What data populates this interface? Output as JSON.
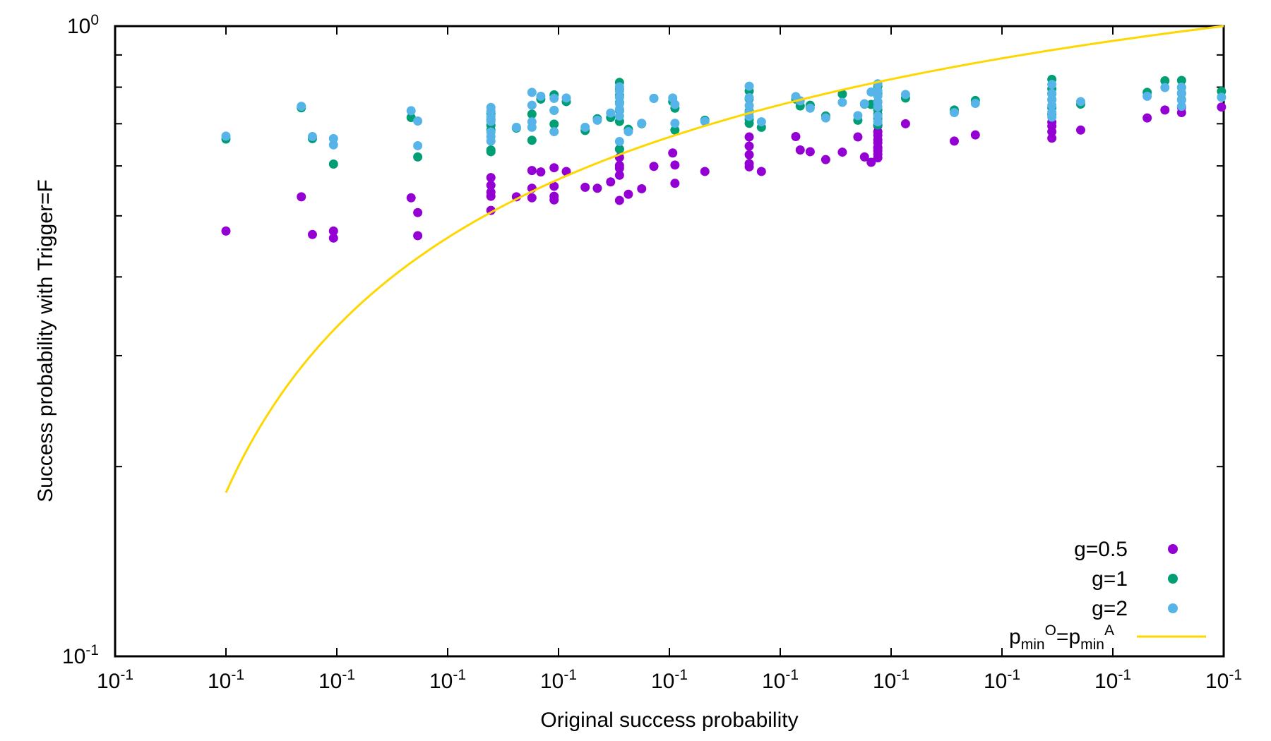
{
  "chart_data": {
    "type": "scatter",
    "title": "",
    "xlabel": "Original success probability",
    "ylabel": "Success probability with Trigger=F",
    "x_scale": "linear",
    "y_scale": "log",
    "xlim": [
      0.0,
      1.0
    ],
    "ylim": [
      0.1,
      1.0
    ],
    "x_tick_labels": [
      {
        "base": "10",
        "exp": "-1"
      },
      {
        "base": "10",
        "exp": "-1"
      },
      {
        "base": "10",
        "exp": "-1"
      },
      {
        "base": "10",
        "exp": "-1"
      },
      {
        "base": "10",
        "exp": "-1"
      },
      {
        "base": "10",
        "exp": "-1"
      },
      {
        "base": "10",
        "exp": "-1"
      },
      {
        "base": "10",
        "exp": "-1"
      },
      {
        "base": "10",
        "exp": "-1"
      },
      {
        "base": "10",
        "exp": "-1"
      },
      {
        "base": "10",
        "exp": "-1"
      }
    ],
    "y_tick_labels": [
      {
        "base": "10",
        "exp": "0"
      },
      {
        "base": "10",
        "exp": "-1"
      }
    ],
    "grid": false,
    "legend_position": "bottom-right",
    "series": [
      {
        "name": "g=0.5",
        "color": "#9400d3",
        "marker": "circle",
        "points": [
          [
            0.1,
            0.473
          ],
          [
            0.168,
            0.536
          ],
          [
            0.178,
            0.467
          ],
          [
            0.197,
            0.473
          ],
          [
            0.197,
            0.461
          ],
          [
            0.267,
            0.534
          ],
          [
            0.273,
            0.506
          ],
          [
            0.273,
            0.465
          ],
          [
            0.339,
            0.575
          ],
          [
            0.339,
            0.559
          ],
          [
            0.339,
            0.545
          ],
          [
            0.339,
            0.537
          ],
          [
            0.339,
            0.51
          ],
          [
            0.362,
            0.536
          ],
          [
            0.376,
            0.534
          ],
          [
            0.376,
            0.553
          ],
          [
            0.376,
            0.59
          ],
          [
            0.384,
            0.587
          ],
          [
            0.396,
            0.537
          ],
          [
            0.396,
            0.53
          ],
          [
            0.396,
            0.596
          ],
          [
            0.396,
            0.557
          ],
          [
            0.407,
            0.588
          ],
          [
            0.424,
            0.555
          ],
          [
            0.435,
            0.553
          ],
          [
            0.447,
            0.566
          ],
          [
            0.455,
            0.529
          ],
          [
            0.455,
            0.58
          ],
          [
            0.455,
            0.595
          ],
          [
            0.455,
            0.601
          ],
          [
            0.455,
            0.619
          ],
          [
            0.455,
            0.638
          ],
          [
            0.463,
            0.541
          ],
          [
            0.475,
            0.552
          ],
          [
            0.486,
            0.599
          ],
          [
            0.503,
            0.629
          ],
          [
            0.505,
            0.602
          ],
          [
            0.505,
            0.563
          ],
          [
            0.532,
            0.588
          ],
          [
            0.572,
            0.667
          ],
          [
            0.572,
            0.645
          ],
          [
            0.572,
            0.625
          ],
          [
            0.572,
            0.605
          ],
          [
            0.572,
            0.598
          ],
          [
            0.583,
            0.588
          ],
          [
            0.614,
            0.668
          ],
          [
            0.618,
            0.636
          ],
          [
            0.627,
            0.632
          ],
          [
            0.641,
            0.614
          ],
          [
            0.656,
            0.631
          ],
          [
            0.67,
            0.667
          ],
          [
            0.676,
            0.62
          ],
          [
            0.682,
            0.608
          ],
          [
            0.688,
            0.642
          ],
          [
            0.688,
            0.653
          ],
          [
            0.688,
            0.626
          ],
          [
            0.688,
            0.634
          ],
          [
            0.688,
            0.618
          ],
          [
            0.688,
            0.641
          ],
          [
            0.688,
            0.66
          ],
          [
            0.688,
            0.671
          ],
          [
            0.688,
            0.68
          ],
          [
            0.688,
            0.695
          ],
          [
            0.713,
            0.7
          ],
          [
            0.757,
            0.657
          ],
          [
            0.776,
            0.672
          ],
          [
            0.845,
            0.704
          ],
          [
            0.845,
            0.664
          ],
          [
            0.845,
            0.68
          ],
          [
            0.845,
            0.694
          ],
          [
            0.871,
            0.684
          ],
          [
            0.931,
            0.715
          ],
          [
            0.947,
            0.736
          ],
          [
            0.962,
            0.743
          ],
          [
            0.962,
            0.729
          ],
          [
            0.998,
            0.744
          ]
        ]
      },
      {
        "name": "g=1",
        "color": "#009e73",
        "marker": "circle",
        "points": [
          [
            0.1,
            0.662
          ],
          [
            0.168,
            0.742
          ],
          [
            0.178,
            0.663
          ],
          [
            0.197,
            0.604
          ],
          [
            0.267,
            0.716
          ],
          [
            0.273,
            0.62
          ],
          [
            0.339,
            0.727
          ],
          [
            0.339,
            0.71
          ],
          [
            0.339,
            0.696
          ],
          [
            0.339,
            0.684
          ],
          [
            0.339,
            0.636
          ],
          [
            0.339,
            0.632
          ],
          [
            0.362,
            0.689
          ],
          [
            0.376,
            0.659
          ],
          [
            0.376,
            0.725
          ],
          [
            0.384,
            0.766
          ],
          [
            0.396,
            0.778
          ],
          [
            0.396,
            0.735
          ],
          [
            0.396,
            0.699
          ],
          [
            0.407,
            0.759
          ],
          [
            0.424,
            0.683
          ],
          [
            0.435,
            0.713
          ],
          [
            0.447,
            0.716
          ],
          [
            0.455,
            0.814
          ],
          [
            0.455,
            0.794
          ],
          [
            0.455,
            0.776
          ],
          [
            0.455,
            0.756
          ],
          [
            0.455,
            0.735
          ],
          [
            0.455,
            0.706
          ],
          [
            0.455,
            0.638
          ],
          [
            0.463,
            0.686
          ],
          [
            0.475,
            0.7
          ],
          [
            0.486,
            0.768
          ],
          [
            0.503,
            0.759
          ],
          [
            0.505,
            0.741
          ],
          [
            0.505,
            0.684
          ],
          [
            0.532,
            0.709
          ],
          [
            0.572,
            0.789
          ],
          [
            0.572,
            0.767
          ],
          [
            0.572,
            0.733
          ],
          [
            0.572,
            0.711
          ],
          [
            0.572,
            0.701
          ],
          [
            0.583,
            0.691
          ],
          [
            0.614,
            0.766
          ],
          [
            0.618,
            0.747
          ],
          [
            0.627,
            0.749
          ],
          [
            0.641,
            0.72
          ],
          [
            0.656,
            0.78
          ],
          [
            0.67,
            0.709
          ],
          [
            0.676,
            0.752
          ],
          [
            0.682,
            0.751
          ],
          [
            0.688,
            0.803
          ],
          [
            0.688,
            0.781
          ],
          [
            0.688,
            0.758
          ],
          [
            0.688,
            0.737
          ],
          [
            0.688,
            0.725
          ],
          [
            0.688,
            0.713
          ],
          [
            0.688,
            0.697
          ],
          [
            0.713,
            0.769
          ],
          [
            0.757,
            0.736
          ],
          [
            0.776,
            0.762
          ],
          [
            0.845,
            0.823
          ],
          [
            0.845,
            0.795
          ],
          [
            0.845,
            0.781
          ],
          [
            0.845,
            0.764
          ],
          [
            0.845,
            0.742
          ],
          [
            0.845,
            0.725
          ],
          [
            0.871,
            0.752
          ],
          [
            0.931,
            0.785
          ],
          [
            0.947,
            0.819
          ],
          [
            0.962,
            0.82
          ],
          [
            0.962,
            0.799
          ],
          [
            0.962,
            0.782
          ],
          [
            0.962,
            0.764
          ],
          [
            0.998,
            0.788
          ]
        ]
      },
      {
        "name": "g=2",
        "color": "#56b4e9",
        "marker": "circle",
        "points": [
          [
            0.1,
            0.669
          ],
          [
            0.168,
            0.746
          ],
          [
            0.178,
            0.668
          ],
          [
            0.197,
            0.663
          ],
          [
            0.197,
            0.648
          ],
          [
            0.267,
            0.734
          ],
          [
            0.273,
            0.707
          ],
          [
            0.273,
            0.646
          ],
          [
            0.339,
            0.743
          ],
          [
            0.339,
            0.733
          ],
          [
            0.339,
            0.718
          ],
          [
            0.339,
            0.706
          ],
          [
            0.339,
            0.679
          ],
          [
            0.339,
            0.668
          ],
          [
            0.339,
            0.657
          ],
          [
            0.362,
            0.691
          ],
          [
            0.376,
            0.785
          ],
          [
            0.376,
            0.749
          ],
          [
            0.376,
            0.705
          ],
          [
            0.376,
            0.691
          ],
          [
            0.384,
            0.774
          ],
          [
            0.396,
            0.768
          ],
          [
            0.396,
            0.735
          ],
          [
            0.396,
            0.68
          ],
          [
            0.407,
            0.769
          ],
          [
            0.424,
            0.691
          ],
          [
            0.435,
            0.709
          ],
          [
            0.447,
            0.728
          ],
          [
            0.455,
            0.801
          ],
          [
            0.455,
            0.789
          ],
          [
            0.455,
            0.771
          ],
          [
            0.455,
            0.753
          ],
          [
            0.455,
            0.738
          ],
          [
            0.455,
            0.72
          ],
          [
            0.455,
            0.656
          ],
          [
            0.463,
            0.68
          ],
          [
            0.475,
            0.701
          ],
          [
            0.486,
            0.768
          ],
          [
            0.503,
            0.769
          ],
          [
            0.505,
            0.751
          ],
          [
            0.505,
            0.701
          ],
          [
            0.532,
            0.706
          ],
          [
            0.572,
            0.803
          ],
          [
            0.572,
            0.77
          ],
          [
            0.572,
            0.748
          ],
          [
            0.572,
            0.73
          ],
          [
            0.572,
            0.719
          ],
          [
            0.583,
            0.705
          ],
          [
            0.614,
            0.773
          ],
          [
            0.618,
            0.761
          ],
          [
            0.627,
            0.741
          ],
          [
            0.641,
            0.715
          ],
          [
            0.656,
            0.757
          ],
          [
            0.67,
            0.721
          ],
          [
            0.676,
            0.753
          ],
          [
            0.682,
            0.786
          ],
          [
            0.688,
            0.81
          ],
          [
            0.688,
            0.79
          ],
          [
            0.688,
            0.775
          ],
          [
            0.688,
            0.757
          ],
          [
            0.688,
            0.745
          ],
          [
            0.688,
            0.72
          ],
          [
            0.688,
            0.705
          ],
          [
            0.713,
            0.779
          ],
          [
            0.757,
            0.729
          ],
          [
            0.776,
            0.754
          ],
          [
            0.845,
            0.808
          ],
          [
            0.845,
            0.782
          ],
          [
            0.845,
            0.765
          ],
          [
            0.845,
            0.749
          ],
          [
            0.845,
            0.73
          ],
          [
            0.845,
            0.717
          ],
          [
            0.871,
            0.759
          ],
          [
            0.931,
            0.774
          ],
          [
            0.947,
            0.799
          ],
          [
            0.962,
            0.8
          ],
          [
            0.962,
            0.783
          ],
          [
            0.962,
            0.763
          ],
          [
            0.962,
            0.746
          ],
          [
            0.998,
            0.771
          ]
        ]
      },
      {
        "name": "p_min^O=p_min^A",
        "color": "#ffd700",
        "marker": "line",
        "curve": "y = 2x/(1+x)",
        "x_range": [
          0.1,
          1.0
        ],
        "legend_parts": [
          {
            "text": "p",
            "style": "base"
          },
          {
            "text": "min",
            "style": "sub"
          },
          {
            "text": "O",
            "style": "sup"
          },
          {
            "text": "=p",
            "style": "base"
          },
          {
            "text": "min",
            "style": "sub"
          },
          {
            "text": "A",
            "style": "sup"
          }
        ]
      }
    ]
  }
}
